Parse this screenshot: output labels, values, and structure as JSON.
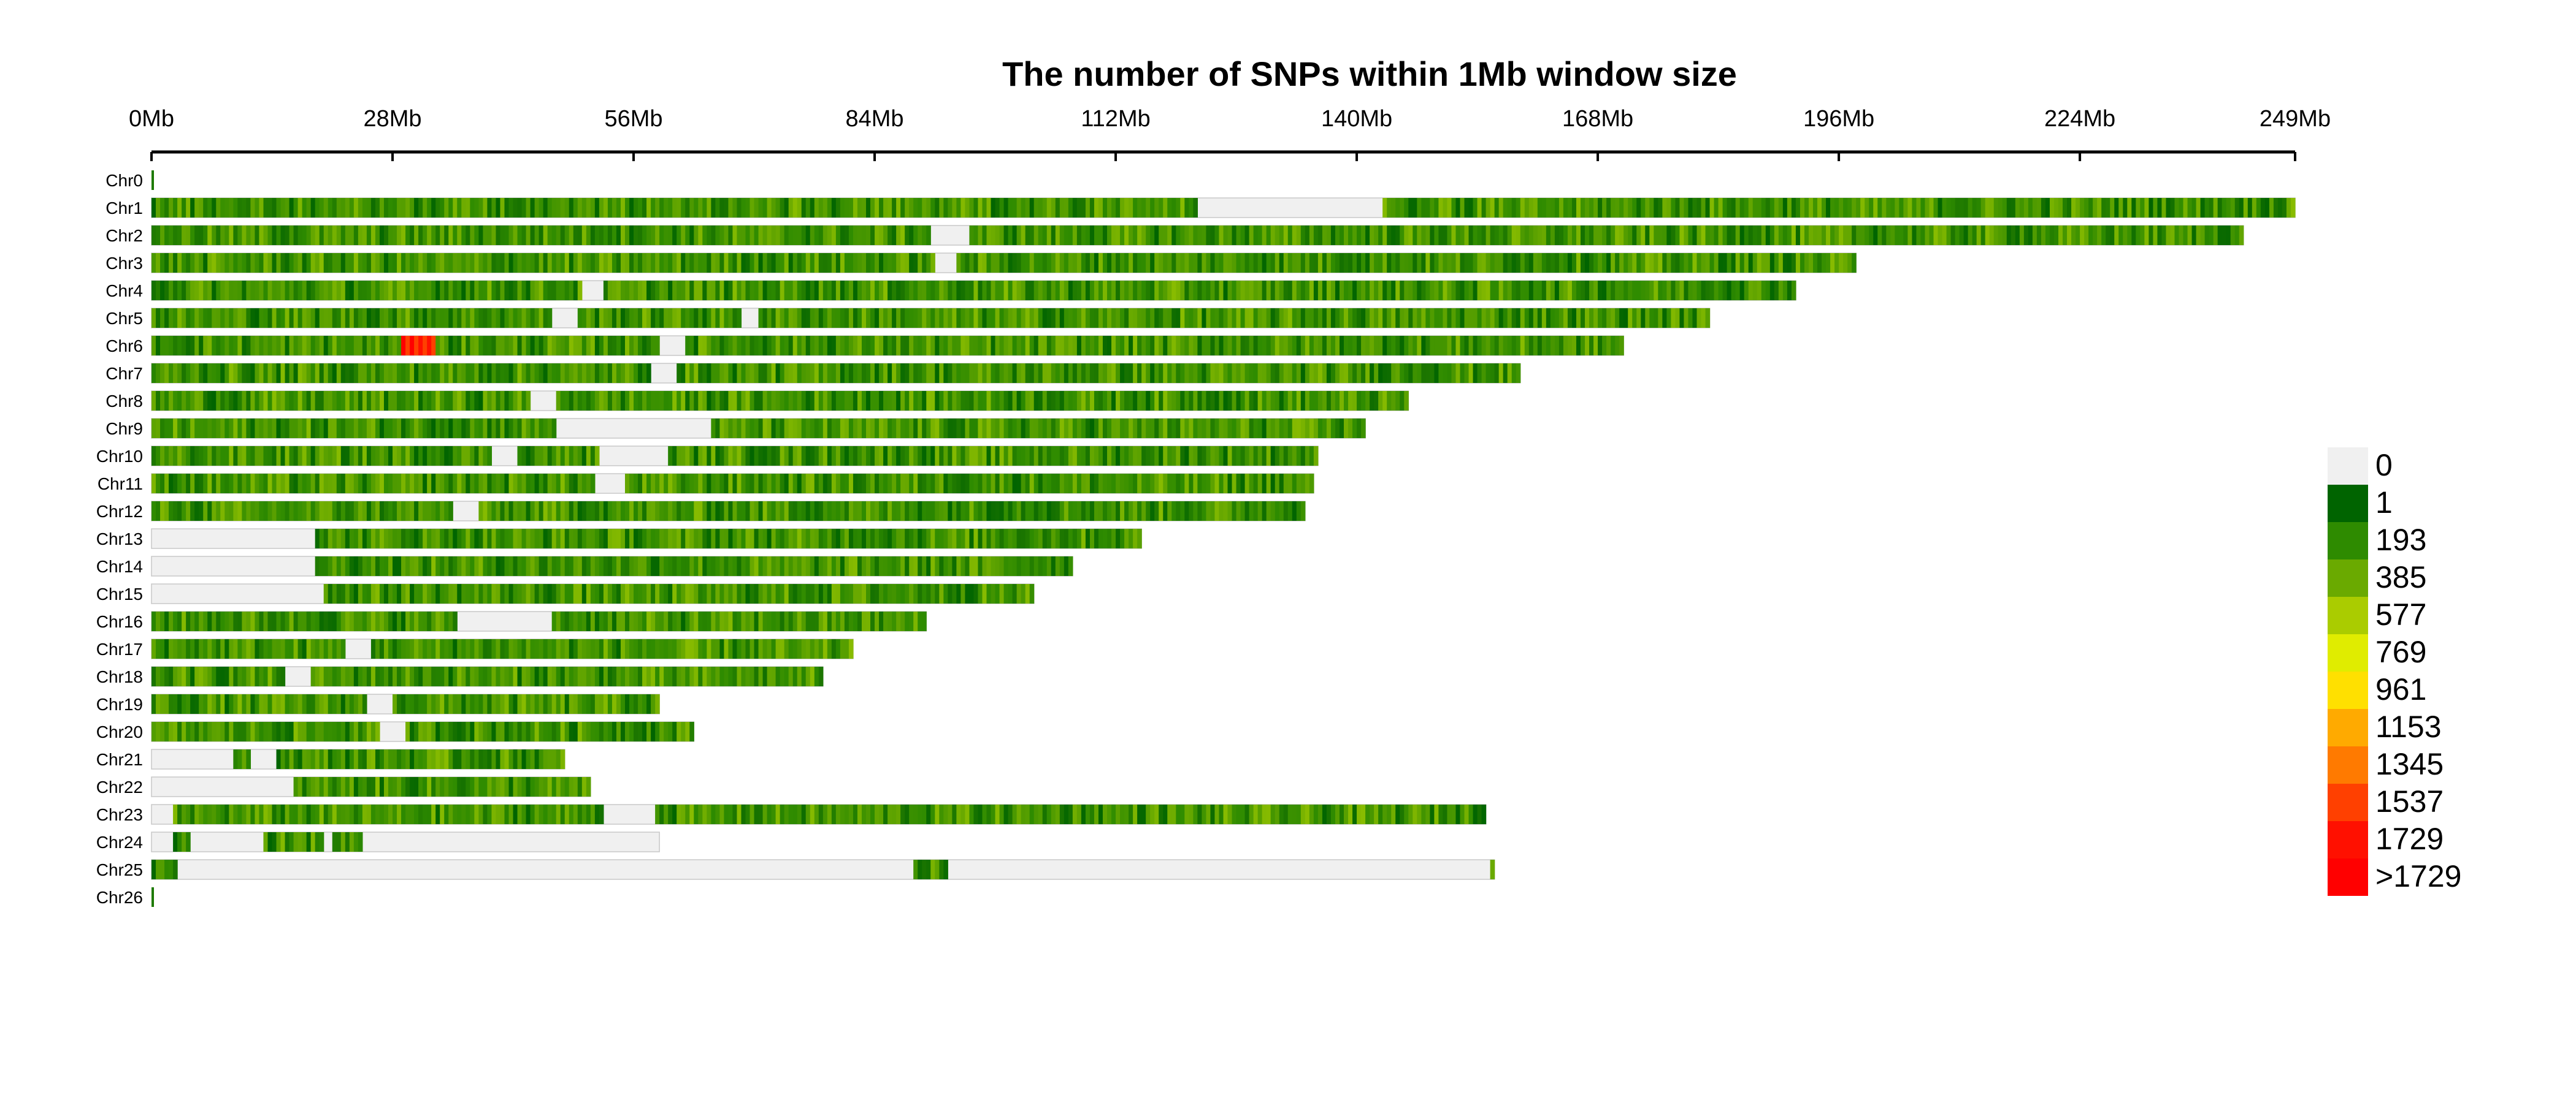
{
  "chart_data": {
    "type": "heatmap",
    "title": "The number of SNPs within 1Mb window size",
    "x_unit": "Mb",
    "x_ticks": [
      {
        "value": 0,
        "label": "0Mb"
      },
      {
        "value": 28,
        "label": "28Mb"
      },
      {
        "value": 56,
        "label": "56Mb"
      },
      {
        "value": 84,
        "label": "84Mb"
      },
      {
        "value": 112,
        "label": "112Mb"
      },
      {
        "value": 140,
        "label": "140Mb"
      },
      {
        "value": 168,
        "label": "168Mb"
      },
      {
        "value": 196,
        "label": "196Mb"
      },
      {
        "value": 224,
        "label": "224Mb"
      },
      {
        "value": 249,
        "label": "249Mb"
      }
    ],
    "xlim": [
      0,
      249
    ],
    "legend_position": "right",
    "legend": [
      {
        "label": "0",
        "color": "#f0f0f0"
      },
      {
        "label": "1",
        "color": "#006400"
      },
      {
        "label": "193",
        "color": "#2e8b00"
      },
      {
        "label": "385",
        "color": "#6aaa00"
      },
      {
        "label": "577",
        "color": "#aacc00"
      },
      {
        "label": "769",
        "color": "#e0ec00"
      },
      {
        "label": "961",
        "color": "#ffe000"
      },
      {
        "label": "1153",
        "color": "#ffaa00"
      },
      {
        "label": "1345",
        "color": "#ff7a00"
      },
      {
        "label": "1537",
        "color": "#ff4000"
      },
      {
        "label": "1729",
        "color": "#ff1000"
      },
      {
        "label": ">1729",
        "color": "#ff0000"
      }
    ],
    "chromosomes": [
      {
        "name": "Chr0",
        "length": 0.3,
        "gaps": [],
        "hot": []
      },
      {
        "name": "Chr1",
        "length": 249,
        "gaps": [
          [
            121.5,
            143
          ]
        ],
        "hot": []
      },
      {
        "name": "Chr2",
        "length": 243,
        "gaps": [
          [
            90.5,
            95
          ]
        ],
        "hot": []
      },
      {
        "name": "Chr3",
        "length": 198,
        "gaps": [
          [
            91,
            93.5
          ]
        ],
        "hot": []
      },
      {
        "name": "Chr4",
        "length": 191,
        "gaps": [
          [
            50,
            52.5
          ]
        ],
        "hot": []
      },
      {
        "name": "Chr5",
        "length": 181,
        "gaps": [
          [
            46.5,
            49.5
          ],
          [
            68.5,
            70.5
          ]
        ],
        "hot": []
      },
      {
        "name": "Chr6",
        "length": 171,
        "gaps": [
          [
            59,
            62
          ]
        ],
        "hot": [
          [
            29,
            33
          ]
        ]
      },
      {
        "name": "Chr7",
        "length": 159,
        "gaps": [
          [
            58,
            61
          ]
        ],
        "hot": []
      },
      {
        "name": "Chr8",
        "length": 146,
        "gaps": [
          [
            44,
            47
          ]
        ],
        "hot": []
      },
      {
        "name": "Chr9",
        "length": 141,
        "gaps": [
          [
            47,
            65
          ]
        ],
        "hot": []
      },
      {
        "name": "Chr10",
        "length": 135.5,
        "gaps": [
          [
            39.5,
            42.5
          ],
          [
            52,
            60
          ]
        ],
        "hot": []
      },
      {
        "name": "Chr11",
        "length": 135,
        "gaps": [
          [
            51.5,
            55
          ]
        ],
        "hot": []
      },
      {
        "name": "Chr12",
        "length": 134,
        "gaps": [
          [
            35,
            38
          ]
        ],
        "hot": []
      },
      {
        "name": "Chr13",
        "length": 115,
        "gaps": [
          [
            0,
            19
          ]
        ],
        "hot": []
      },
      {
        "name": "Chr14",
        "length": 107,
        "gaps": [
          [
            0,
            19
          ]
        ],
        "hot": []
      },
      {
        "name": "Chr15",
        "length": 102.5,
        "gaps": [
          [
            0,
            20
          ]
        ],
        "hot": []
      },
      {
        "name": "Chr16",
        "length": 90,
        "gaps": [
          [
            35.5,
            46.5
          ]
        ],
        "hot": []
      },
      {
        "name": "Chr17",
        "length": 81.5,
        "gaps": [
          [
            22.5,
            25.5
          ]
        ],
        "hot": []
      },
      {
        "name": "Chr18",
        "length": 78,
        "gaps": [
          [
            15.5,
            18.5
          ]
        ],
        "hot": []
      },
      {
        "name": "Chr19",
        "length": 59,
        "gaps": [
          [
            25,
            28
          ]
        ],
        "hot": []
      },
      {
        "name": "Chr20",
        "length": 63,
        "gaps": [
          [
            26.5,
            29.5
          ]
        ],
        "hot": []
      },
      {
        "name": "Chr21",
        "length": 48,
        "gaps": [
          [
            0,
            9.5
          ],
          [
            11.5,
            14.5
          ]
        ],
        "hot": []
      },
      {
        "name": "Chr22",
        "length": 51,
        "gaps": [
          [
            0,
            16.5
          ]
        ],
        "hot": []
      },
      {
        "name": "Chr23",
        "length": 155,
        "gaps": [
          [
            0,
            2.5
          ],
          [
            52.5,
            58.5
          ]
        ],
        "hot": []
      },
      {
        "name": "Chr24",
        "length": 59,
        "gaps": [
          [
            0,
            2.5
          ],
          [
            4.5,
            13
          ],
          [
            20,
            21
          ],
          [
            24.5,
            59
          ]
        ],
        "hot": []
      },
      {
        "name": "Chr25",
        "length": 156,
        "gaps": [
          [
            3,
            88.5
          ],
          [
            92.5,
            155.5
          ]
        ],
        "hot": []
      },
      {
        "name": "Chr26",
        "length": 0.3,
        "gaps": [],
        "hot": []
      }
    ]
  }
}
